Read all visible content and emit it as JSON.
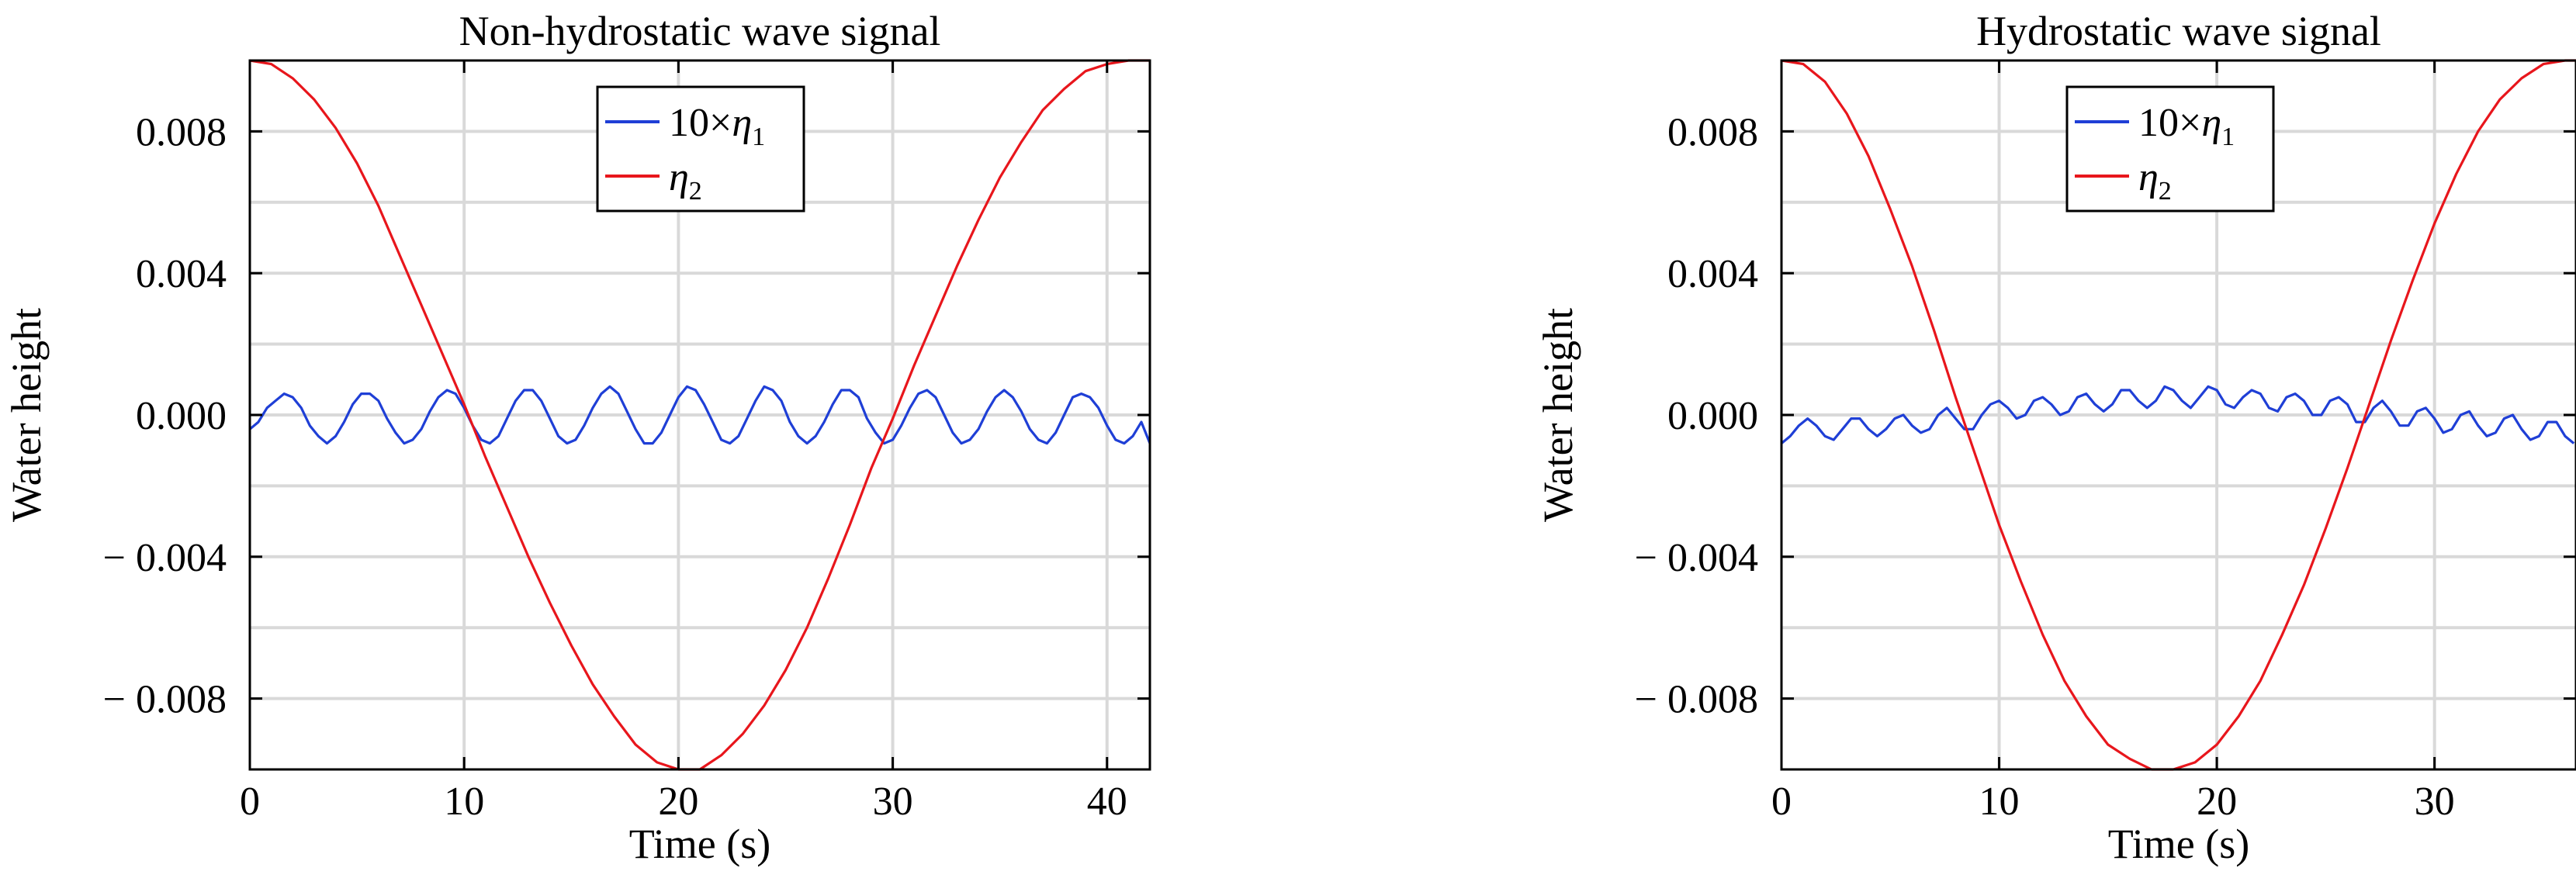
{
  "figure": {
    "colors": {
      "series1": "#1f3fd6",
      "series2": "#e8161c",
      "grid": "#d9d9d9",
      "axis": "#000000"
    }
  },
  "chart_data": [
    {
      "type": "line",
      "title": "Non-hydrostatic wave signal",
      "xlabel": "Time (s)",
      "ylabel": "Water height",
      "xlim": [
        0,
        42
      ],
      "ylim": [
        -0.01,
        0.01
      ],
      "xticks": [
        0,
        10,
        20,
        30,
        40
      ],
      "xtick_labels": [
        "0",
        "10",
        "20",
        "30",
        "40"
      ],
      "yticks": [
        0.008,
        0.004,
        0.0,
        -0.004,
        -0.008
      ],
      "ytick_labels": [
        "0.008",
        "0.004",
        "0.000",
        "− 0.004",
        "− 0.008"
      ],
      "grid": true,
      "legend_position": "top-center",
      "legend": [
        {
          "prefix": "10×",
          "symbol": "η",
          "sub": "1",
          "color": "#1f3fd6"
        },
        {
          "prefix": "",
          "symbol": "η",
          "sub": "2",
          "color": "#e8161c"
        }
      ],
      "series": [
        {
          "name": "10×η1",
          "color": "#1f3fd6",
          "x": [
            0.0,
            0.4,
            0.8,
            1.2,
            1.6,
            2.0,
            2.4,
            2.8,
            3.2,
            3.6,
            4.0,
            4.4,
            4.8,
            5.2,
            5.6,
            6.0,
            6.4,
            6.8,
            7.2,
            7.6,
            8.0,
            8.4,
            8.8,
            9.2,
            9.6,
            10.0,
            10.4,
            10.8,
            11.2,
            11.6,
            12.0,
            12.4,
            12.8,
            13.2,
            13.6,
            14.0,
            14.4,
            14.8,
            15.2,
            15.6,
            16.0,
            16.4,
            16.8,
            17.2,
            17.6,
            18.0,
            18.4,
            18.8,
            19.2,
            19.6,
            20.0,
            20.4,
            20.8,
            21.2,
            21.6,
            22.0,
            22.4,
            22.8,
            23.2,
            23.6,
            24.0,
            24.4,
            24.8,
            25.2,
            25.6,
            26.0,
            26.4,
            26.8,
            27.2,
            27.6,
            28.0,
            28.4,
            28.8,
            29.2,
            29.6,
            30.0,
            30.4,
            30.8,
            31.2,
            31.6,
            32.0,
            32.4,
            32.8,
            33.2,
            33.6,
            34.0,
            34.4,
            34.8,
            35.2,
            35.6,
            36.0,
            36.4,
            36.8,
            37.2,
            37.6,
            38.0,
            38.4,
            38.8,
            39.2,
            39.6,
            40.0,
            40.4,
            40.8,
            41.2,
            41.6,
            42.0
          ],
          "y": [
            -0.0004,
            -0.0002,
            0.0002,
            0.0004,
            0.0006,
            0.0005,
            0.0002,
            -0.0003,
            -0.0006,
            -0.0008,
            -0.0006,
            -0.0002,
            0.0003,
            0.0006,
            0.0006,
            0.0004,
            -0.0001,
            -0.0005,
            -0.0008,
            -0.0007,
            -0.0004,
            0.0001,
            0.0005,
            0.0007,
            0.0006,
            0.0002,
            -0.0003,
            -0.0007,
            -0.0008,
            -0.0006,
            -0.0001,
            0.0004,
            0.0007,
            0.0007,
            0.0004,
            -0.0001,
            -0.0006,
            -0.0008,
            -0.0007,
            -0.0003,
            0.0002,
            0.0006,
            0.0008,
            0.0006,
            0.0001,
            -0.0004,
            -0.0008,
            -0.0008,
            -0.0005,
            0.0,
            0.0005,
            0.0008,
            0.0007,
            0.0003,
            -0.0002,
            -0.0007,
            -0.0008,
            -0.0006,
            -0.0001,
            0.0004,
            0.0008,
            0.0007,
            0.0004,
            -0.0002,
            -0.0006,
            -0.0008,
            -0.0006,
            -0.0002,
            0.0003,
            0.0007,
            0.0007,
            0.0005,
            -0.0001,
            -0.0005,
            -0.0008,
            -0.0007,
            -0.0003,
            0.0002,
            0.0006,
            0.0007,
            0.0005,
            0.0,
            -0.0005,
            -0.0008,
            -0.0007,
            -0.0004,
            0.0001,
            0.0005,
            0.0007,
            0.0005,
            0.0001,
            -0.0004,
            -0.0007,
            -0.0008,
            -0.0005,
            0.0,
            0.0005,
            0.0006,
            0.0005,
            0.0002,
            -0.0003,
            -0.0007,
            -0.0008,
            -0.0006,
            -0.0002,
            -0.0008
          ]
        },
        {
          "name": "η2",
          "color": "#e8161c",
          "x": [
            0,
            1,
            2,
            3,
            4,
            5,
            6,
            7,
            8,
            9,
            10,
            11,
            12,
            13,
            14,
            15,
            16,
            17,
            18,
            19,
            20,
            20.5,
            21,
            22,
            23,
            24,
            25,
            26,
            27,
            28,
            29,
            30,
            31,
            32,
            33,
            34,
            35,
            36,
            37,
            38,
            39,
            40,
            41,
            42
          ],
          "y": [
            0.01,
            0.0099,
            0.0095,
            0.0089,
            0.0081,
            0.0071,
            0.0059,
            0.0045,
            0.0031,
            0.0017,
            0.0003,
            -0.0012,
            -0.0026,
            -0.004,
            -0.0053,
            -0.0065,
            -0.0076,
            -0.0085,
            -0.0093,
            -0.0098,
            -0.01,
            -0.01,
            -0.01,
            -0.0096,
            -0.009,
            -0.0082,
            -0.0072,
            -0.006,
            -0.0046,
            -0.0031,
            -0.0015,
            -0.0001,
            0.0014,
            0.0028,
            0.0042,
            0.0055,
            0.0067,
            0.0077,
            0.0086,
            0.0092,
            0.0097,
            0.0099,
            0.01,
            0.01
          ]
        }
      ]
    },
    {
      "type": "line",
      "title": "Hydrostatic wave signal",
      "xlabel": "Time (s)",
      "ylabel": "Water height",
      "xlim": [
        0,
        36.5
      ],
      "ylim": [
        -0.01,
        0.01
      ],
      "xticks": [
        0,
        10,
        20,
        30
      ],
      "xtick_labels": [
        "0",
        "10",
        "20",
        "30"
      ],
      "yticks": [
        0.008,
        0.004,
        0.0,
        -0.004,
        -0.008
      ],
      "ytick_labels": [
        "0.008",
        "0.004",
        "0.000",
        "− 0.004",
        "− 0.008"
      ],
      "grid": true,
      "legend_position": "top-center",
      "legend": [
        {
          "prefix": "10×",
          "symbol": "η",
          "sub": "1",
          "color": "#1f3fd6"
        },
        {
          "prefix": "",
          "symbol": "η",
          "sub": "2",
          "color": "#e8161c"
        }
      ],
      "series": [
        {
          "name": "10×η1",
          "color": "#1f3fd6",
          "x": [
            0.0,
            0.4,
            0.8,
            1.2,
            1.6,
            2.0,
            2.4,
            2.8,
            3.2,
            3.6,
            4.0,
            4.4,
            4.8,
            5.2,
            5.6,
            6.0,
            6.4,
            6.8,
            7.2,
            7.6,
            8.0,
            8.4,
            8.8,
            9.2,
            9.6,
            10.0,
            10.4,
            10.8,
            11.2,
            11.6,
            12.0,
            12.4,
            12.8,
            13.2,
            13.6,
            14.0,
            14.4,
            14.8,
            15.2,
            15.6,
            16.0,
            16.4,
            16.8,
            17.2,
            17.6,
            18.0,
            18.4,
            18.8,
            19.2,
            19.6,
            20.0,
            20.4,
            20.8,
            21.2,
            21.6,
            22.0,
            22.4,
            22.8,
            23.2,
            23.6,
            24.0,
            24.4,
            24.8,
            25.2,
            25.6,
            26.0,
            26.4,
            26.8,
            27.2,
            27.6,
            28.0,
            28.4,
            28.8,
            29.2,
            29.6,
            30.0,
            30.4,
            30.8,
            31.2,
            31.6,
            32.0,
            32.4,
            32.8,
            33.2,
            33.6,
            34.0,
            34.4,
            34.8,
            35.2,
            35.6,
            36.0,
            36.4
          ],
          "y": [
            -0.0008,
            -0.0006,
            -0.0003,
            -0.0001,
            -0.0003,
            -0.0006,
            -0.0007,
            -0.0004,
            -0.0001,
            -0.0001,
            -0.0004,
            -0.0006,
            -0.0004,
            -0.0001,
            0.0,
            -0.0003,
            -0.0005,
            -0.0004,
            0.0,
            0.0002,
            -0.0001,
            -0.0004,
            -0.0004,
            0.0,
            0.0003,
            0.0004,
            0.0002,
            -0.0001,
            0.0,
            0.0004,
            0.0005,
            0.0003,
            0.0,
            0.0001,
            0.0005,
            0.0006,
            0.0003,
            0.0001,
            0.0003,
            0.0007,
            0.0007,
            0.0004,
            0.0002,
            0.0004,
            0.0008,
            0.0007,
            0.0004,
            0.0002,
            0.0005,
            0.0008,
            0.0007,
            0.0003,
            0.0002,
            0.0005,
            0.0007,
            0.0006,
            0.0002,
            0.0001,
            0.0005,
            0.0006,
            0.0004,
            0.0,
            0.0,
            0.0004,
            0.0005,
            0.0003,
            -0.0002,
            -0.0002,
            0.0002,
            0.0004,
            0.0001,
            -0.0003,
            -0.0003,
            0.0001,
            0.0002,
            -0.0001,
            -0.0005,
            -0.0004,
            0.0,
            0.0001,
            -0.0003,
            -0.0006,
            -0.0005,
            -0.0001,
            0.0,
            -0.0004,
            -0.0007,
            -0.0006,
            -0.0002,
            -0.0002,
            -0.0006,
            -0.0008
          ]
        },
        {
          "name": "η2",
          "color": "#e8161c",
          "x": [
            0,
            1,
            2,
            3,
            4,
            5,
            6,
            7,
            8,
            9,
            10,
            11,
            12,
            13,
            14,
            15,
            16,
            17,
            18,
            19,
            20,
            21,
            22,
            23,
            24,
            25,
            26,
            27,
            28,
            29,
            30,
            31,
            32,
            33,
            34,
            35,
            36,
            36.5
          ],
          "y": [
            0.01,
            0.0099,
            0.0094,
            0.0085,
            0.0073,
            0.0058,
            0.0042,
            0.0024,
            0.0005,
            -0.0013,
            -0.0031,
            -0.0047,
            -0.0062,
            -0.0075,
            -0.0085,
            -0.0093,
            -0.0097,
            -0.01,
            -0.01,
            -0.0098,
            -0.0093,
            -0.0085,
            -0.0075,
            -0.0062,
            -0.0048,
            -0.0032,
            -0.0015,
            0.0003,
            0.0021,
            0.0038,
            0.0054,
            0.0068,
            0.008,
            0.0089,
            0.0095,
            0.0099,
            0.01,
            0.01
          ]
        }
      ]
    }
  ]
}
